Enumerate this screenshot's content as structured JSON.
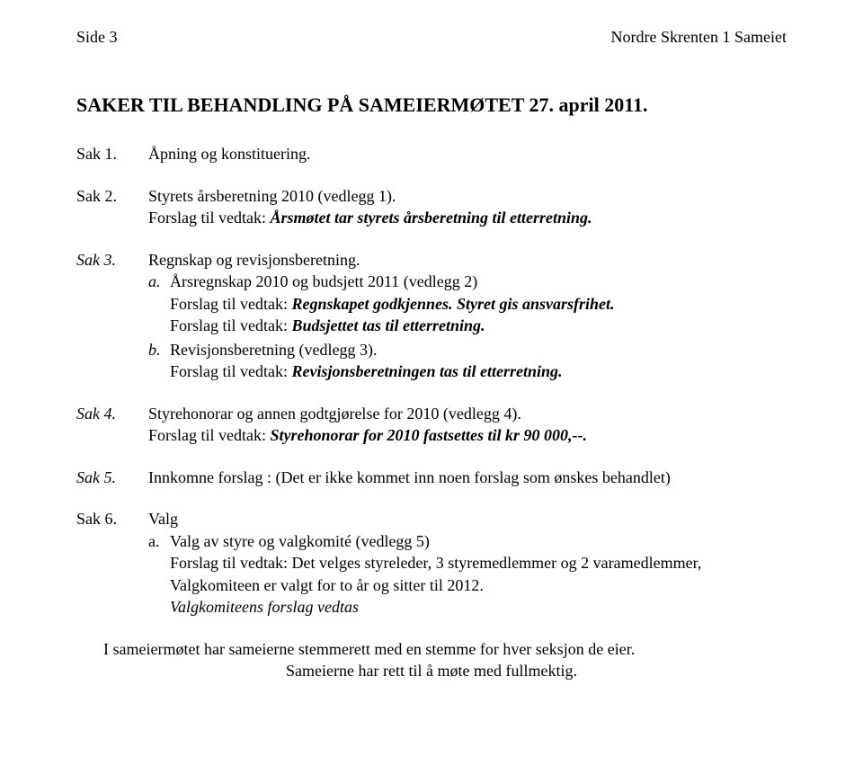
{
  "header": {
    "left": "Side 3",
    "right": "Nordre Skrenten 1 Sameiet"
  },
  "heading": "SAKER TIL BEHANDLING PÅ SAMEIERMØTET 27. april 2011.",
  "sak1": {
    "label": "Sak 1.",
    "text": "Åpning og konstituering."
  },
  "sak2": {
    "label": "Sak 2.",
    "line1": "Styrets årsberetning 2010 (vedlegg 1).",
    "line2_prefix": "Forslag til vedtak: ",
    "line2_em": "Årsmøtet tar styrets årsberetning til etterretning."
  },
  "sak3": {
    "label": "Sak 3.",
    "line1": "Regnskap og revisjonsberetning.",
    "a": {
      "letter": "a.",
      "l1": "Årsregnskap 2010 og budsjett 2011 (vedlegg 2)",
      "l2_prefix": "Forslag til vedtak: ",
      "l2_em": "Regnskapet godkjennes. Styret gis ansvarsfrihet.",
      "l3_prefix": "Forslag til vedtak: ",
      "l3_em": "Budsjettet tas til etterretning."
    },
    "b": {
      "letter": "b.",
      "l1": "Revisjonsberetning (vedlegg 3).",
      "l2_prefix": "Forslag til vedtak: ",
      "l2_em": "Revisjonsberetningen tas til etterretning."
    }
  },
  "sak4": {
    "label": "Sak 4.",
    "l1": "Styrehonorar og annen godtgjørelse for 2010 (vedlegg 4).",
    "l2_prefix": "Forslag til vedtak: ",
    "l2_em": "Styrehonorar for 2010 fastsettes til kr 90 000,--."
  },
  "sak5": {
    "label": "Sak 5.",
    "text": "Innkomne forslag : (Det er ikke kommet inn noen forslag som ønskes behandlet)"
  },
  "sak6": {
    "label": "Sak 6.",
    "l1": "Valg",
    "a": {
      "letter": "a.",
      "l1": "Valg av styre og valgkomité (vedlegg 5)",
      "l2": "Forslag til vedtak: Det velges styreleder, 3 styremedlemmer og 2 varamedlemmer,",
      "l3": "Valgkomiteen er valgt for to år og sitter til 2012.",
      "l4": "Valgkomiteens forslag vedtas"
    }
  },
  "footer": {
    "l1": "I sameiermøtet har sameierne stemmerett med en stemme for hver seksjon de eier.",
    "l2": "Sameierne har rett til å møte med fullmektig."
  }
}
